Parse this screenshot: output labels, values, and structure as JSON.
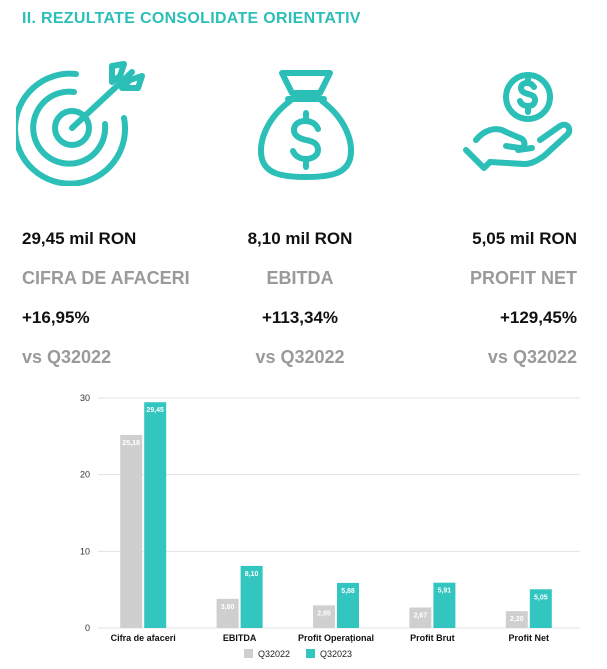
{
  "header": {
    "title": "II. REZULTATE CONSOLIDATE ORIENTATIV"
  },
  "icons": [
    "target-icon",
    "money-bag-icon",
    "hand-coin-icon"
  ],
  "colors": {
    "accent": "#2bbfb8",
    "series_2022": "#cfcfcf",
    "series_2023": "#33c6c0",
    "muted_text": "#9a9a9a"
  },
  "kpis": [
    {
      "value": "29,45 mil RON",
      "label": "CIFRA DE AFACERI",
      "change": "+16,95%",
      "baseline": "vs Q32022"
    },
    {
      "value": "8,10 mil RON",
      "label": "EBITDA",
      "change": "+113,34%",
      "baseline": "vs Q32022"
    },
    {
      "value": "5,05 mil RON",
      "label": "PROFIT NET",
      "change": "+129,45%",
      "baseline": "vs Q32022"
    }
  ],
  "chart_data": {
    "type": "bar",
    "categories": [
      "Cifra de afaceri",
      "EBITDA",
      "Profit Operațional",
      "Profit Brut",
      "Profit Net"
    ],
    "series": [
      {
        "name": "Q32022",
        "values": [
          25.18,
          3.8,
          2.95,
          2.67,
          2.2
        ],
        "labels": [
          "25,18",
          "3,80",
          "2,95",
          "2,67",
          "2,20"
        ]
      },
      {
        "name": "Q32023",
        "values": [
          29.45,
          8.1,
          5.88,
          5.91,
          5.05
        ],
        "labels": [
          "29,45",
          "8,10",
          "5,88",
          "5,91",
          "5,05"
        ]
      }
    ],
    "yticks": [
      0,
      10,
      20,
      30
    ],
    "ylim": [
      0,
      30
    ],
    "grid": true,
    "legend": "bottom-center"
  }
}
